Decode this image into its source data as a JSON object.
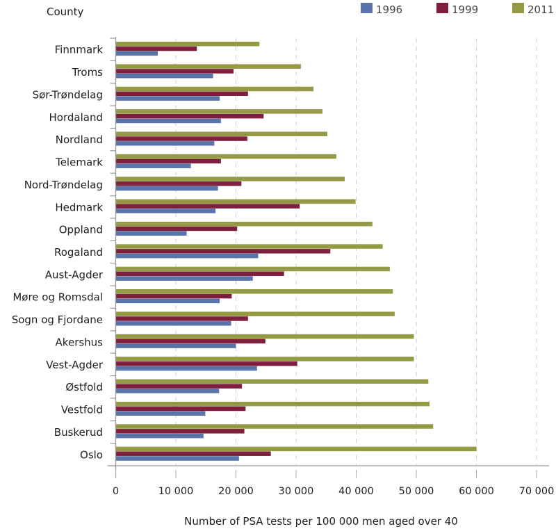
{
  "chart_data": {
    "type": "bar",
    "orientation": "horizontal",
    "title": "",
    "ylabel": "County",
    "xlabel": "Number of PSA tests per 100 000 men aged over 40",
    "xlim": [
      0,
      70000
    ],
    "xticks": [
      0,
      10000,
      20000,
      30000,
      40000,
      50000,
      60000,
      70000
    ],
    "xtick_labels": [
      "0",
      "10 000",
      "20 000",
      "30 000",
      "40 000",
      "50 000",
      "60 000",
      "70 000"
    ],
    "grid": "vertical dashed",
    "legend_position": "top-right",
    "categories": [
      "Finnmark",
      "Troms",
      "Sør-Trøndelag",
      "Hordaland",
      "Nordland",
      "Telemark",
      "Nord-Trøndelag",
      "Hedmark",
      "Oppland",
      "Rogaland",
      "Aust-Agder",
      "Møre og Romsdal",
      "Sogn og Fjordane",
      "Akershus",
      "Vest-Agder",
      "Østfold",
      "Vestfold",
      "Buskerud",
      "Oslo"
    ],
    "series": [
      {
        "name": "1996",
        "color": "#5874a8",
        "values": [
          7000,
          16200,
          17300,
          17500,
          16400,
          12500,
          17000,
          16600,
          11800,
          23700,
          22800,
          17300,
          19200,
          20000,
          23500,
          17200,
          14900,
          14600,
          20500
        ]
      },
      {
        "name": "1999",
        "color": "#7e1f3e",
        "values": [
          13500,
          19600,
          22000,
          24600,
          21900,
          17500,
          20900,
          30600,
          20200,
          35700,
          28000,
          19300,
          22000,
          24900,
          30200,
          21000,
          21600,
          21400,
          25800
        ]
      },
      {
        "name": "2011",
        "color": "#959a44",
        "values": [
          23900,
          30800,
          32900,
          34400,
          35200,
          36700,
          38100,
          39900,
          42700,
          44400,
          45600,
          46100,
          46400,
          49600,
          49600,
          52000,
          52200,
          52800,
          60000
        ]
      }
    ]
  }
}
